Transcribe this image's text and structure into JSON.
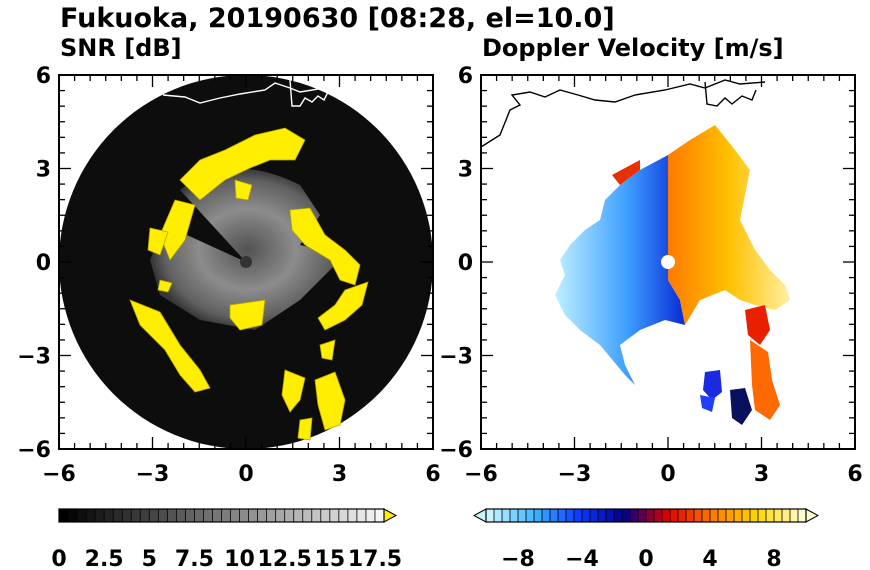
{
  "figure": {
    "title": "Fukuoka, 20190630 [08:28, el=10.0]"
  },
  "chart_data": [
    {
      "type": "heatmap",
      "title": "SNR [dB]",
      "xlabel": "",
      "ylabel": "",
      "xlim": [
        -6,
        6
      ],
      "ylim": [
        -6,
        6
      ],
      "x_ticks": [
        -6,
        -3,
        0,
        3,
        6
      ],
      "y_ticks": [
        -6,
        -3,
        0,
        3,
        6
      ],
      "range_ring_radius": 6,
      "colorbar": {
        "min": 0,
        "max": 18,
        "step": 0.5,
        "tick_values": [
          0,
          2.5,
          5,
          7.5,
          10,
          12.5,
          15,
          17.5
        ],
        "tick_labels": [
          "0",
          "2.5",
          "5",
          "7.5",
          "10",
          "12.5",
          "15",
          "17.5"
        ],
        "extend": "max",
        "low_color": "#000000",
        "high_color": "#f4f4f4",
        "over_color": "#ffee00"
      },
      "colors": {
        "background": "#0d0d0d",
        "echo": "#8c8c8c",
        "strong": "#ffee00",
        "coast": "#ffffff"
      }
    },
    {
      "type": "heatmap",
      "title": "Doppler Velocity [m/s]",
      "xlabel": "",
      "ylabel": "",
      "xlim": [
        -6,
        6
      ],
      "ylim": [
        -6,
        6
      ],
      "x_ticks": [
        -6,
        -3,
        0,
        3,
        6
      ],
      "y_ticks": [
        -6,
        -3,
        0,
        3,
        6
      ],
      "colorbar": {
        "min": -10,
        "max": 10,
        "step": 0.5,
        "tick_values": [
          -8,
          -4,
          0,
          4,
          8
        ],
        "tick_labels": [
          "−8",
          "−4",
          "0",
          "4",
          "8"
        ],
        "extend": "both",
        "stops": [
          "#c8f4ff",
          "#3fb4ff",
          "#0a3aff",
          "#02008a",
          "#e00000",
          "#ff7a00",
          "#ffd800",
          "#fffad0"
        ]
      },
      "colors": {
        "coast": "#000000",
        "radar_site": "#ffffff"
      }
    }
  ]
}
